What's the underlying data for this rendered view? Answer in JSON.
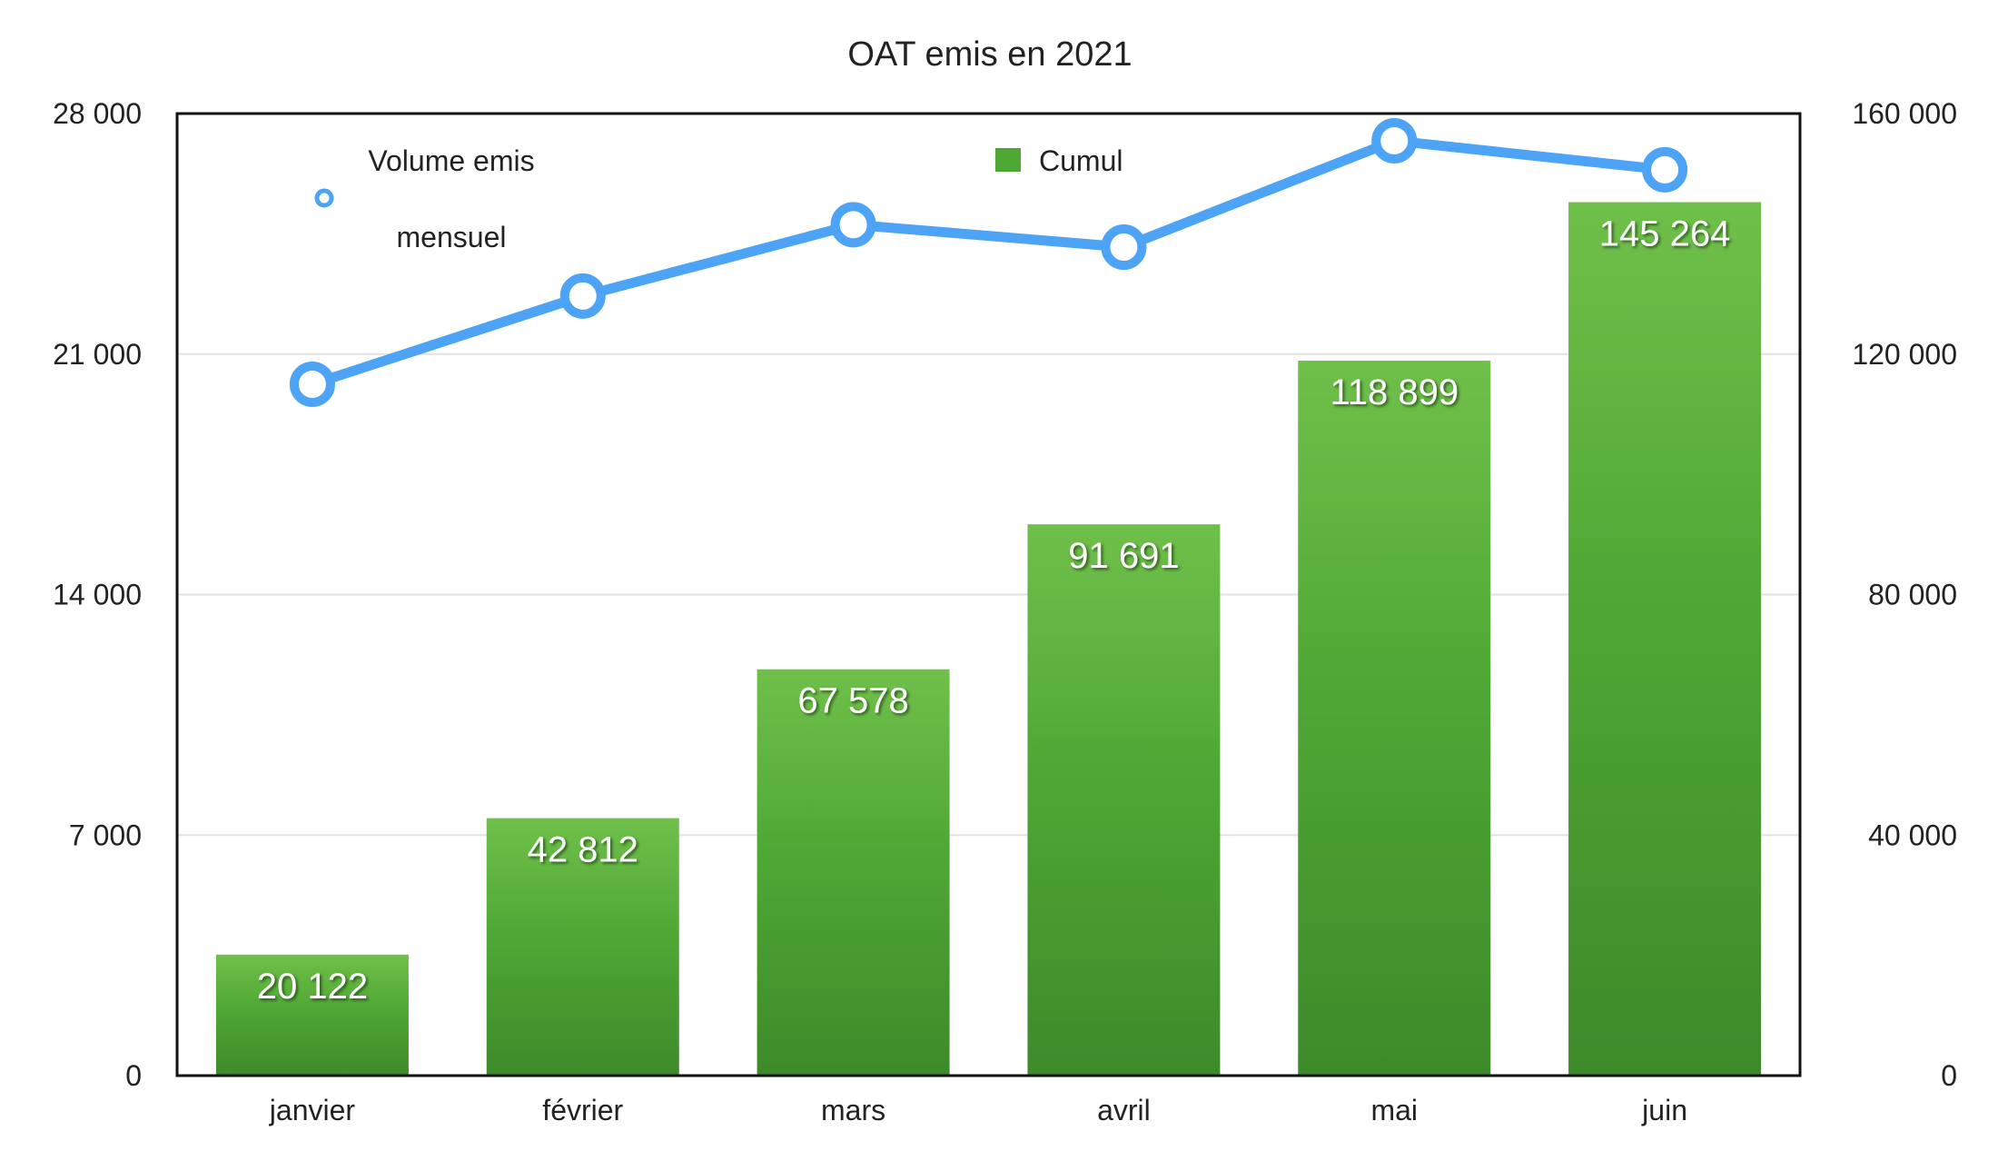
{
  "chart_data": {
    "type": "bar",
    "title": "OAT emis en 2021",
    "categories": [
      "janvier",
      "février",
      "mars",
      "avril",
      "mai",
      "juin"
    ],
    "series": [
      {
        "name": "Cumul",
        "type": "bar",
        "axis": "right",
        "values": [
          20122,
          42812,
          67578,
          91691,
          118899,
          145264
        ],
        "value_labels": [
          "20 122",
          "42 812",
          "67 578",
          "91 691",
          "118 899",
          "145 264"
        ]
      },
      {
        "name": "Volume emis mensuel",
        "name_lines": [
          "Volume emis",
          "mensuel"
        ],
        "type": "line",
        "axis": "left",
        "values": [
          20122,
          22690,
          24766,
          24113,
          27208,
          26365
        ]
      }
    ],
    "y_left": {
      "range": [
        0,
        28000
      ],
      "ticks": [
        0,
        7000,
        14000,
        21000,
        28000
      ],
      "tick_labels": [
        "0",
        "7 000",
        "14 000",
        "21 000",
        "28 000"
      ]
    },
    "y_right": {
      "range": [
        0,
        160000
      ],
      "ticks": [
        0,
        40000,
        80000,
        120000,
        160000
      ],
      "tick_labels": [
        "0",
        "40 000",
        "80 000",
        "120 000",
        "160 000"
      ]
    },
    "grid": true,
    "legend": "top",
    "colors": {
      "bar_top": "#6fc04a",
      "bar_mid": "#4fa834",
      "bar_bottom": "#3d8a2a",
      "line": "#4da3f5",
      "grid": "#e2e2e2",
      "axis": "#111111"
    }
  }
}
